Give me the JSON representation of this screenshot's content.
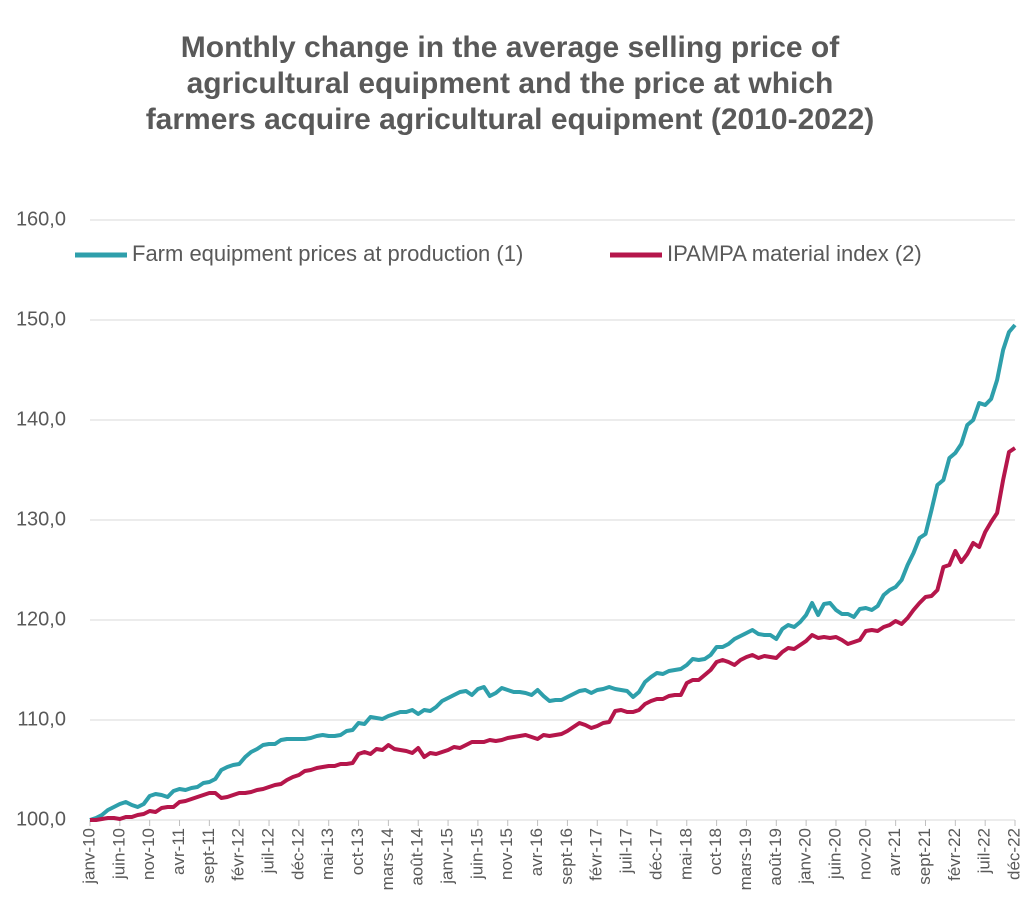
{
  "chart_data": {
    "type": "line",
    "title": "Monthly change in the average selling price of agricultural equipment and the price at which farmers acquire agricultural equipment (2010-2022)",
    "categories": [
      "janv-10",
      null,
      null,
      null,
      null,
      "juin-10",
      null,
      null,
      null,
      null,
      "nov-10",
      null,
      null,
      null,
      null,
      "avr-11",
      null,
      null,
      null,
      null,
      "sept-11",
      null,
      null,
      null,
      null,
      "févr-12",
      null,
      null,
      null,
      null,
      "juil-12",
      null,
      null,
      null,
      null,
      "déc-12",
      null,
      null,
      null,
      null,
      "mai-13",
      null,
      null,
      null,
      null,
      "oct-13",
      null,
      null,
      null,
      null,
      "mars-14",
      null,
      null,
      null,
      null,
      "août-14",
      null,
      null,
      null,
      null,
      "janv-15",
      null,
      null,
      null,
      null,
      "juin-15",
      null,
      null,
      null,
      null,
      "nov-15",
      null,
      null,
      null,
      null,
      "avr-16",
      null,
      null,
      null,
      null,
      "sept-16",
      null,
      null,
      null,
      null,
      "févr-17",
      null,
      null,
      null,
      null,
      "juil-17",
      null,
      null,
      null,
      null,
      "déc-17",
      null,
      null,
      null,
      null,
      "mai-18",
      null,
      null,
      null,
      null,
      "oct-18",
      null,
      null,
      null,
      null,
      "mars-19",
      null,
      null,
      null,
      null,
      "août-19",
      null,
      null,
      null,
      null,
      "janv-20",
      null,
      null,
      null,
      null,
      "juin-20",
      null,
      null,
      null,
      null,
      "nov-20",
      null,
      null,
      null,
      null,
      "avr-21",
      null,
      null,
      null,
      null,
      "sept-21",
      null,
      null,
      null,
      null,
      "févr-22",
      null,
      null,
      null,
      null,
      "juil-22",
      null,
      null,
      null,
      null,
      "déc-22"
    ],
    "series": [
      {
        "name": "Farm equipment prices at production (1)",
        "color": "#2e9fab",
        "values": [
          100.0,
          100.2,
          100.5,
          101.0,
          101.3,
          101.6,
          101.8,
          101.5,
          101.3,
          101.6,
          102.4,
          102.6,
          102.5,
          102.3,
          102.9,
          103.1,
          103.0,
          103.2,
          103.3,
          103.7,
          103.8,
          104.1,
          105.0,
          105.3,
          105.5,
          105.6,
          106.3,
          106.8,
          107.1,
          107.5,
          107.6,
          107.6,
          108.0,
          108.1,
          108.1,
          108.1,
          108.1,
          108.2,
          108.4,
          108.5,
          108.4,
          108.4,
          108.5,
          108.9,
          109.0,
          109.7,
          109.6,
          110.3,
          110.2,
          110.1,
          110.4,
          110.6,
          110.8,
          110.8,
          111.0,
          110.6,
          111.0,
          110.9,
          111.3,
          111.9,
          112.2,
          112.5,
          112.8,
          112.9,
          112.5,
          113.1,
          113.3,
          112.4,
          112.7,
          113.2,
          113.0,
          112.8,
          112.8,
          112.7,
          112.5,
          113.0,
          112.4,
          111.9,
          112.0,
          112.0,
          112.3,
          112.6,
          112.9,
          113.0,
          112.7,
          113.0,
          113.1,
          113.3,
          113.1,
          113.0,
          112.9,
          112.3,
          112.8,
          113.8,
          114.3,
          114.7,
          114.6,
          114.9,
          115.0,
          115.1,
          115.5,
          116.1,
          116.0,
          116.1,
          116.5,
          117.3,
          117.3,
          117.6,
          118.1,
          118.4,
          118.7,
          119.0,
          118.6,
          118.5,
          118.5,
          118.1,
          119.1,
          119.5,
          119.3,
          119.8,
          120.5,
          121.7,
          120.5,
          121.6,
          121.7,
          121.0,
          120.6,
          120.6,
          120.3,
          121.1,
          121.2,
          121.0,
          121.4,
          122.5,
          123.0,
          123.3,
          124.0,
          125.5,
          126.7,
          128.2,
          128.6,
          131.0,
          133.5,
          134.0,
          136.2,
          136.7,
          137.6,
          139.5,
          140.0,
          141.7,
          141.5,
          142.1,
          144.0,
          147.0,
          148.8,
          149.5
        ]
      },
      {
        "name": "IPAMPA material index (2)",
        "color": "#b5164b",
        "values": [
          100.0,
          100.0,
          100.1,
          100.2,
          100.2,
          100.1,
          100.3,
          100.3,
          100.5,
          100.6,
          100.9,
          100.8,
          101.2,
          101.3,
          101.3,
          101.8,
          101.9,
          102.1,
          102.3,
          102.5,
          102.7,
          102.7,
          102.2,
          102.3,
          102.5,
          102.7,
          102.7,
          102.8,
          103.0,
          103.1,
          103.3,
          103.5,
          103.6,
          104.0,
          104.3,
          104.5,
          104.9,
          105.0,
          105.2,
          105.3,
          105.4,
          105.4,
          105.6,
          105.6,
          105.7,
          106.6,
          106.8,
          106.6,
          107.1,
          107.0,
          107.5,
          107.1,
          107.0,
          106.9,
          106.7,
          107.2,
          106.3,
          106.7,
          106.6,
          106.8,
          107.0,
          107.3,
          107.2,
          107.5,
          107.8,
          107.8,
          107.8,
          108.0,
          107.9,
          108.0,
          108.2,
          108.3,
          108.4,
          108.5,
          108.3,
          108.1,
          108.5,
          108.4,
          108.5,
          108.6,
          108.9,
          109.3,
          109.7,
          109.5,
          109.2,
          109.4,
          109.7,
          109.8,
          110.9,
          111.0,
          110.8,
          110.8,
          111.0,
          111.6,
          111.9,
          112.1,
          112.1,
          112.4,
          112.5,
          112.5,
          113.7,
          114.0,
          114.0,
          114.5,
          115.0,
          115.8,
          116.0,
          115.8,
          115.5,
          116.0,
          116.3,
          116.5,
          116.2,
          116.4,
          116.3,
          116.2,
          116.8,
          117.2,
          117.1,
          117.5,
          117.9,
          118.5,
          118.2,
          118.3,
          118.2,
          118.3,
          118.0,
          117.6,
          117.8,
          118.0,
          118.9,
          119.0,
          118.9,
          119.3,
          119.5,
          119.9,
          119.6,
          120.2,
          121.0,
          121.7,
          122.3,
          122.4,
          123.0,
          125.3,
          125.5,
          126.9,
          125.8,
          126.6,
          127.7,
          127.3,
          128.8,
          129.8,
          130.7,
          134.0,
          136.8,
          137.2
        ]
      }
    ],
    "ylim": [
      100,
      160
    ],
    "yticks": [
      {
        "value": 100,
        "label": "100,0"
      },
      {
        "value": 110,
        "label": "110,0"
      },
      {
        "value": 120,
        "label": "120,0"
      },
      {
        "value": 130,
        "label": "130,0"
      },
      {
        "value": 140,
        "label": "140,0"
      },
      {
        "value": 150,
        "label": "150,0"
      },
      {
        "value": 160,
        "label": "160,0"
      }
    ],
    "grid": true,
    "legend": "top"
  }
}
